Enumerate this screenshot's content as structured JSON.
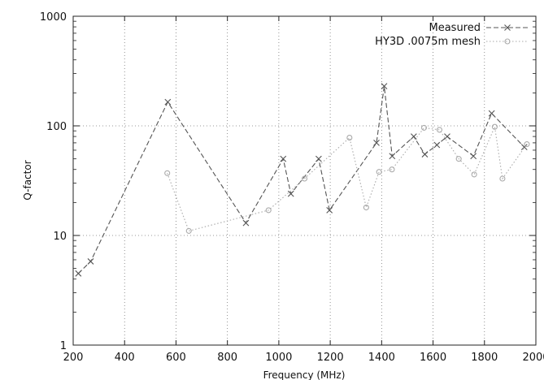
{
  "chart_data": {
    "type": "line",
    "title": "",
    "xlabel": "Frequency (MHz)",
    "ylabel": "Q-factor",
    "xlim": [
      200,
      2000
    ],
    "ylim": [
      1,
      1000
    ],
    "yscale": "log",
    "grid": true,
    "legend_position": "top-right",
    "x_ticks": [
      "200",
      "400",
      "600",
      "800",
      "1000",
      "1200",
      "1400",
      "1600",
      "1800",
      "2000"
    ],
    "y_ticks": [
      "1",
      "10",
      "100",
      "1000"
    ],
    "series": [
      {
        "name": "Measured",
        "color": "#555555",
        "marker": "cross",
        "dash": "dashed",
        "points": [
          [
            220,
            4.5
          ],
          [
            268,
            5.8
          ],
          [
            568,
            165
          ],
          [
            872,
            13
          ],
          [
            1017,
            50
          ],
          [
            1047,
            24
          ],
          [
            1155,
            50
          ],
          [
            1197,
            17
          ],
          [
            1380,
            70
          ],
          [
            1410,
            230
          ],
          [
            1441,
            53
          ],
          [
            1525,
            80
          ],
          [
            1568,
            55
          ],
          [
            1615,
            67
          ],
          [
            1655,
            80
          ],
          [
            1757,
            53
          ],
          [
            1828,
            130
          ],
          [
            1955,
            64
          ]
        ]
      },
      {
        "name": "HY3D .0075m mesh",
        "color": "#aaaaaa",
        "marker": "circle",
        "dash": "dotted",
        "points": [
          [
            566,
            37
          ],
          [
            650,
            11
          ],
          [
            960,
            17
          ],
          [
            1100,
            33
          ],
          [
            1275,
            78
          ],
          [
            1340,
            18
          ],
          [
            1390,
            38
          ],
          [
            1440,
            40
          ],
          [
            1565,
            96
          ],
          [
            1625,
            92
          ],
          [
            1700,
            50
          ],
          [
            1760,
            36
          ],
          [
            1840,
            98
          ],
          [
            1870,
            33
          ],
          [
            1965,
            68
          ]
        ]
      }
    ]
  }
}
